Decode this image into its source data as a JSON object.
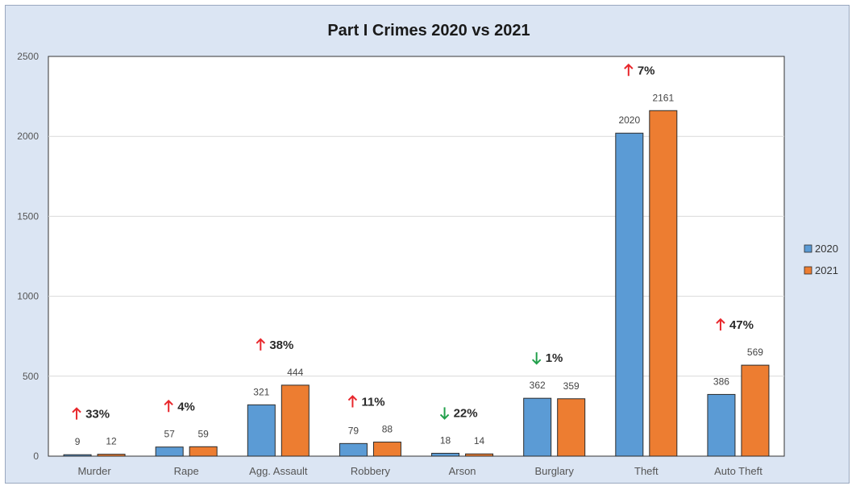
{
  "chart_data": {
    "type": "bar",
    "title": "Part I Crimes 2020 vs 2021",
    "categories": [
      "Murder",
      "Rape",
      "Agg. Assault",
      "Robbery",
      "Arson",
      "Burglary",
      "Theft",
      "Auto Theft"
    ],
    "series": [
      {
        "name": "2020",
        "values": [
          9,
          57,
          321,
          79,
          18,
          362,
          2020,
          386
        ],
        "color": "#5b9bd5"
      },
      {
        "name": "2021",
        "values": [
          12,
          59,
          444,
          88,
          14,
          359,
          2161,
          569
        ],
        "color": "#ed7d31"
      }
    ],
    "yticks": [
      0,
      500,
      1000,
      1500,
      2000,
      2500
    ],
    "ylim": [
      0,
      2500
    ],
    "grid": true,
    "legend_position": "right",
    "annotations": [
      {
        "direction": "up",
        "text": "33%"
      },
      {
        "direction": "up",
        "text": "4%"
      },
      {
        "direction": "up",
        "text": "38%"
      },
      {
        "direction": "up",
        "text": "11%"
      },
      {
        "direction": "down",
        "text": "22%"
      },
      {
        "direction": "down",
        "text": "1%"
      },
      {
        "direction": "up",
        "text": "7%"
      },
      {
        "direction": "up",
        "text": "47%"
      }
    ],
    "up_color": "#e8272c",
    "down_color": "#22a04b"
  }
}
